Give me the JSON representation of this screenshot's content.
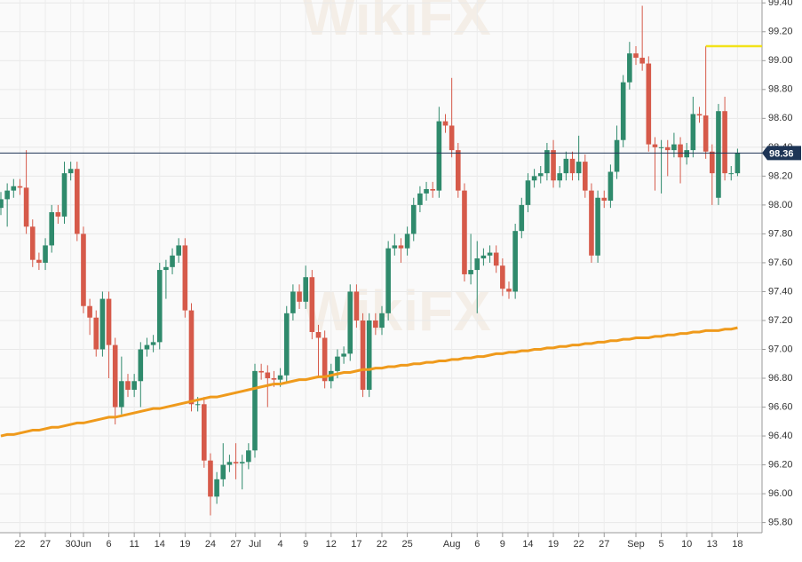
{
  "chart_data": {
    "type": "candlestick",
    "watermark": "WikiFX",
    "categories": [
      null,
      null,
      null,
      "22",
      null,
      null,
      null,
      "27",
      null,
      null,
      null,
      "30",
      null,
      "Jun",
      null,
      null,
      null,
      "6",
      null,
      null,
      null,
      "11",
      null,
      null,
      null,
      "14",
      null,
      null,
      null,
      "19",
      null,
      null,
      null,
      "24",
      null,
      null,
      null,
      "27",
      null,
      null,
      "Jul",
      null,
      null,
      null,
      "4",
      null,
      null,
      null,
      "9",
      null,
      null,
      null,
      "12",
      null,
      null,
      null,
      "17",
      null,
      null,
      null,
      "22",
      null,
      null,
      null,
      "25",
      null,
      null,
      null,
      null,
      null,
      null,
      "Aug",
      null,
      null,
      null,
      "6",
      null,
      null,
      null,
      "9",
      null,
      null,
      null,
      "14",
      null,
      null,
      null,
      "19",
      null,
      null,
      null,
      "22",
      null,
      null,
      null,
      "27",
      null,
      null,
      null,
      null,
      "Sep",
      null,
      null,
      null,
      "5",
      null,
      null,
      null,
      "10",
      null,
      null,
      null,
      "13",
      null,
      null,
      null,
      "18"
    ],
    "open": [
      97.98,
      98.04,
      98.1,
      98.13,
      98.12,
      97.85,
      97.62,
      97.6,
      97.72,
      97.95,
      97.92,
      98.22,
      98.25,
      97.8,
      97.3,
      97.22,
      97.0,
      97.35,
      97.03,
      96.6,
      96.78,
      96.72,
      96.78,
      97.0,
      97.03,
      97.05,
      97.55,
      97.57,
      97.65,
      97.72,
      97.27,
      96.62,
      96.62,
      96.23,
      95.98,
      96.1,
      96.2,
      96.22,
      96.21,
      96.22,
      96.3,
      96.85,
      96.84,
      96.8,
      96.79,
      96.82,
      97.25,
      97.4,
      97.33,
      97.5,
      97.12,
      97.08,
      96.78,
      96.85,
      96.95,
      96.97,
      97.4,
      97.2,
      96.72,
      97.2,
      97.15,
      97.25,
      97.7,
      97.72,
      97.7,
      97.8,
      98.0,
      98.08,
      98.11,
      98.1,
      98.58,
      98.55,
      98.38,
      98.1,
      97.52,
      97.55,
      97.63,
      97.65,
      97.67,
      97.58,
      97.42,
      97.4,
      97.82,
      98.0,
      98.17,
      98.2,
      98.22,
      98.38,
      98.17,
      98.22,
      98.32,
      98.22,
      98.3,
      98.1,
      97.65,
      98.05,
      98.03,
      98.23,
      98.45,
      98.85,
      99.05,
      99.02,
      98.98,
      98.42,
      98.4,
      98.4,
      98.38,
      98.42,
      98.33,
      98.38,
      98.63,
      98.62,
      98.37,
      98.05,
      98.65,
      98.22,
      98.22
    ],
    "high": [
      98.09,
      98.15,
      98.18,
      98.18,
      98.38,
      97.9,
      97.67,
      97.77,
      98.0,
      98.0,
      98.3,
      98.3,
      98.3,
      97.85,
      97.35,
      97.27,
      97.4,
      97.4,
      97.08,
      96.95,
      96.83,
      96.83,
      97.05,
      97.08,
      97.1,
      97.6,
      97.62,
      97.7,
      97.77,
      97.77,
      97.32,
      96.67,
      96.67,
      96.28,
      96.15,
      96.35,
      96.27,
      96.35,
      96.27,
      96.35,
      96.9,
      96.9,
      96.89,
      96.85,
      96.87,
      97.3,
      97.45,
      97.45,
      97.58,
      97.55,
      97.17,
      97.13,
      96.9,
      97.0,
      97.02,
      97.45,
      97.45,
      97.25,
      97.25,
      97.25,
      97.3,
      97.75,
      97.8,
      97.77,
      97.85,
      98.05,
      98.13,
      98.16,
      98.16,
      98.68,
      98.63,
      98.88,
      98.43,
      98.15,
      97.8,
      97.75,
      97.7,
      97.72,
      97.72,
      97.63,
      97.47,
      97.87,
      98.05,
      98.22,
      98.25,
      98.27,
      98.43,
      98.45,
      98.27,
      98.37,
      98.37,
      98.48,
      98.35,
      98.15,
      98.1,
      98.1,
      98.28,
      98.55,
      98.9,
      99.13,
      99.1,
      99.38,
      99.03,
      98.47,
      98.45,
      98.45,
      98.5,
      98.47,
      98.43,
      98.75,
      98.68,
      99.1,
      98.42,
      98.7,
      98.75,
      98.27,
      98.39
    ],
    "low": [
      97.93,
      97.85,
      98.05,
      98.07,
      97.8,
      97.57,
      97.55,
      97.55,
      97.67,
      97.87,
      97.87,
      98.17,
      97.75,
      97.25,
      97.1,
      96.95,
      96.95,
      96.8,
      96.48,
      96.55,
      96.67,
      96.67,
      96.6,
      96.95,
      96.98,
      97.0,
      97.35,
      97.52,
      97.6,
      97.22,
      96.57,
      96.57,
      96.18,
      95.85,
      95.93,
      96.05,
      96.15,
      96.1,
      96.03,
      96.17,
      96.25,
      96.79,
      96.6,
      96.74,
      96.74,
      96.77,
      97.2,
      97.28,
      97.28,
      97.07,
      96.8,
      96.73,
      96.73,
      96.8,
      96.9,
      96.92,
      97.15,
      96.67,
      96.67,
      97.1,
      97.1,
      97.2,
      97.65,
      97.6,
      97.65,
      97.75,
      97.95,
      98.03,
      98.05,
      98.05,
      98.5,
      98.33,
      98.05,
      97.47,
      97.45,
      97.25,
      97.58,
      97.6,
      97.53,
      97.37,
      97.35,
      97.35,
      97.77,
      97.95,
      98.12,
      98.15,
      98.17,
      98.12,
      98.12,
      98.17,
      98.17,
      98.17,
      98.05,
      97.6,
      97.6,
      97.98,
      97.98,
      98.18,
      98.4,
      98.8,
      98.97,
      98.93,
      98.37,
      98.1,
      98.08,
      98.2,
      98.33,
      98.15,
      98.28,
      98.33,
      98.57,
      98.32,
      98.0,
      98.0,
      98.17,
      98.17,
      98.2
    ],
    "close": [
      98.04,
      98.1,
      98.13,
      98.12,
      97.85,
      97.62,
      97.6,
      97.72,
      97.95,
      97.92,
      98.22,
      98.25,
      97.8,
      97.3,
      97.22,
      97.0,
      97.35,
      97.03,
      96.6,
      96.78,
      96.72,
      96.78,
      97.0,
      97.03,
      97.05,
      97.55,
      97.57,
      97.65,
      97.72,
      97.27,
      96.62,
      96.62,
      96.23,
      95.98,
      96.1,
      96.2,
      96.22,
      96.21,
      96.22,
      96.3,
      96.85,
      96.84,
      96.8,
      96.79,
      96.82,
      97.25,
      97.4,
      97.33,
      97.5,
      97.12,
      97.08,
      96.78,
      96.85,
      96.95,
      96.97,
      97.4,
      97.2,
      96.72,
      97.2,
      97.15,
      97.25,
      97.7,
      97.72,
      97.7,
      97.8,
      98.0,
      98.08,
      98.11,
      98.1,
      98.58,
      98.55,
      98.38,
      98.1,
      97.52,
      97.55,
      97.63,
      97.65,
      97.67,
      97.58,
      97.42,
      97.4,
      97.82,
      98.0,
      98.17,
      98.2,
      98.22,
      98.38,
      98.17,
      98.22,
      98.32,
      98.22,
      98.3,
      98.1,
      97.65,
      98.05,
      98.03,
      98.23,
      98.45,
      98.85,
      99.05,
      99.02,
      98.98,
      98.42,
      98.4,
      98.4,
      98.38,
      98.42,
      98.33,
      98.38,
      98.63,
      98.62,
      98.37,
      98.22,
      98.65,
      98.22,
      98.22,
      98.36
    ],
    "up_color": "#2f8a6c",
    "down_color": "#d65a4a",
    "moving_average": {
      "color": "#ef9a1c",
      "values": [
        96.4,
        96.41,
        96.41,
        96.42,
        96.43,
        96.44,
        96.44,
        96.45,
        96.46,
        96.46,
        96.47,
        96.48,
        96.49,
        96.49,
        96.5,
        96.51,
        96.52,
        96.53,
        96.53,
        96.54,
        96.55,
        96.56,
        96.57,
        96.58,
        96.59,
        96.59,
        96.6,
        96.61,
        96.62,
        96.63,
        96.64,
        96.65,
        96.66,
        96.67,
        96.67,
        96.68,
        96.69,
        96.7,
        96.71,
        96.72,
        96.73,
        96.74,
        96.75,
        96.76,
        96.76,
        96.77,
        96.78,
        96.79,
        96.79,
        96.8,
        96.81,
        96.81,
        96.82,
        96.83,
        96.84,
        96.84,
        96.85,
        96.86,
        96.86,
        96.87,
        96.87,
        96.88,
        96.88,
        96.89,
        96.89,
        96.9,
        96.9,
        96.91,
        96.91,
        96.92,
        96.92,
        96.93,
        96.93,
        96.94,
        96.94,
        96.95,
        96.95,
        96.96,
        96.97,
        96.97,
        96.98,
        96.98,
        96.99,
        96.99,
        97.0,
        97.0,
        97.01,
        97.01,
        97.02,
        97.02,
        97.03,
        97.03,
        97.04,
        97.04,
        97.05,
        97.05,
        97.06,
        97.06,
        97.07,
        97.07,
        97.08,
        97.08,
        97.08,
        97.09,
        97.09,
        97.1,
        97.1,
        97.11,
        97.11,
        97.12,
        97.12,
        97.13,
        97.13,
        97.13,
        97.14,
        97.14,
        97.15
      ]
    },
    "level_line": {
      "value": 99.1,
      "color": "#f2e21a",
      "start": 111
    },
    "last_price": 98.36,
    "last_price_color": "#1e3556",
    "ylim": [
      95.73,
      99.42
    ],
    "yticks": [
      {
        "value": 95.8,
        "label": "95.80"
      },
      {
        "value": 96.0,
        "label": "96.00"
      },
      {
        "value": 96.2,
        "label": "96.20"
      },
      {
        "value": 96.4,
        "label": "96.40"
      },
      {
        "value": 96.6,
        "label": "96.60"
      },
      {
        "value": 96.8,
        "label": "96.80"
      },
      {
        "value": 97.0,
        "label": "97.00"
      },
      {
        "value": 97.2,
        "label": "97.20"
      },
      {
        "value": 97.4,
        "label": "97.40"
      },
      {
        "value": 97.6,
        "label": "97.60"
      },
      {
        "value": 97.8,
        "label": "97.80"
      },
      {
        "value": 98.0,
        "label": "98.00"
      },
      {
        "value": 98.2,
        "label": "98.20"
      },
      {
        "value": 98.4,
        "label": "98.40"
      },
      {
        "value": 98.6,
        "label": "98.60"
      },
      {
        "value": 98.8,
        "label": "98.80"
      },
      {
        "value": 99.0,
        "label": "99.00"
      },
      {
        "value": 99.2,
        "label": "99.20"
      },
      {
        "value": 99.4,
        "label": "99.40"
      }
    ],
    "grid": true
  }
}
